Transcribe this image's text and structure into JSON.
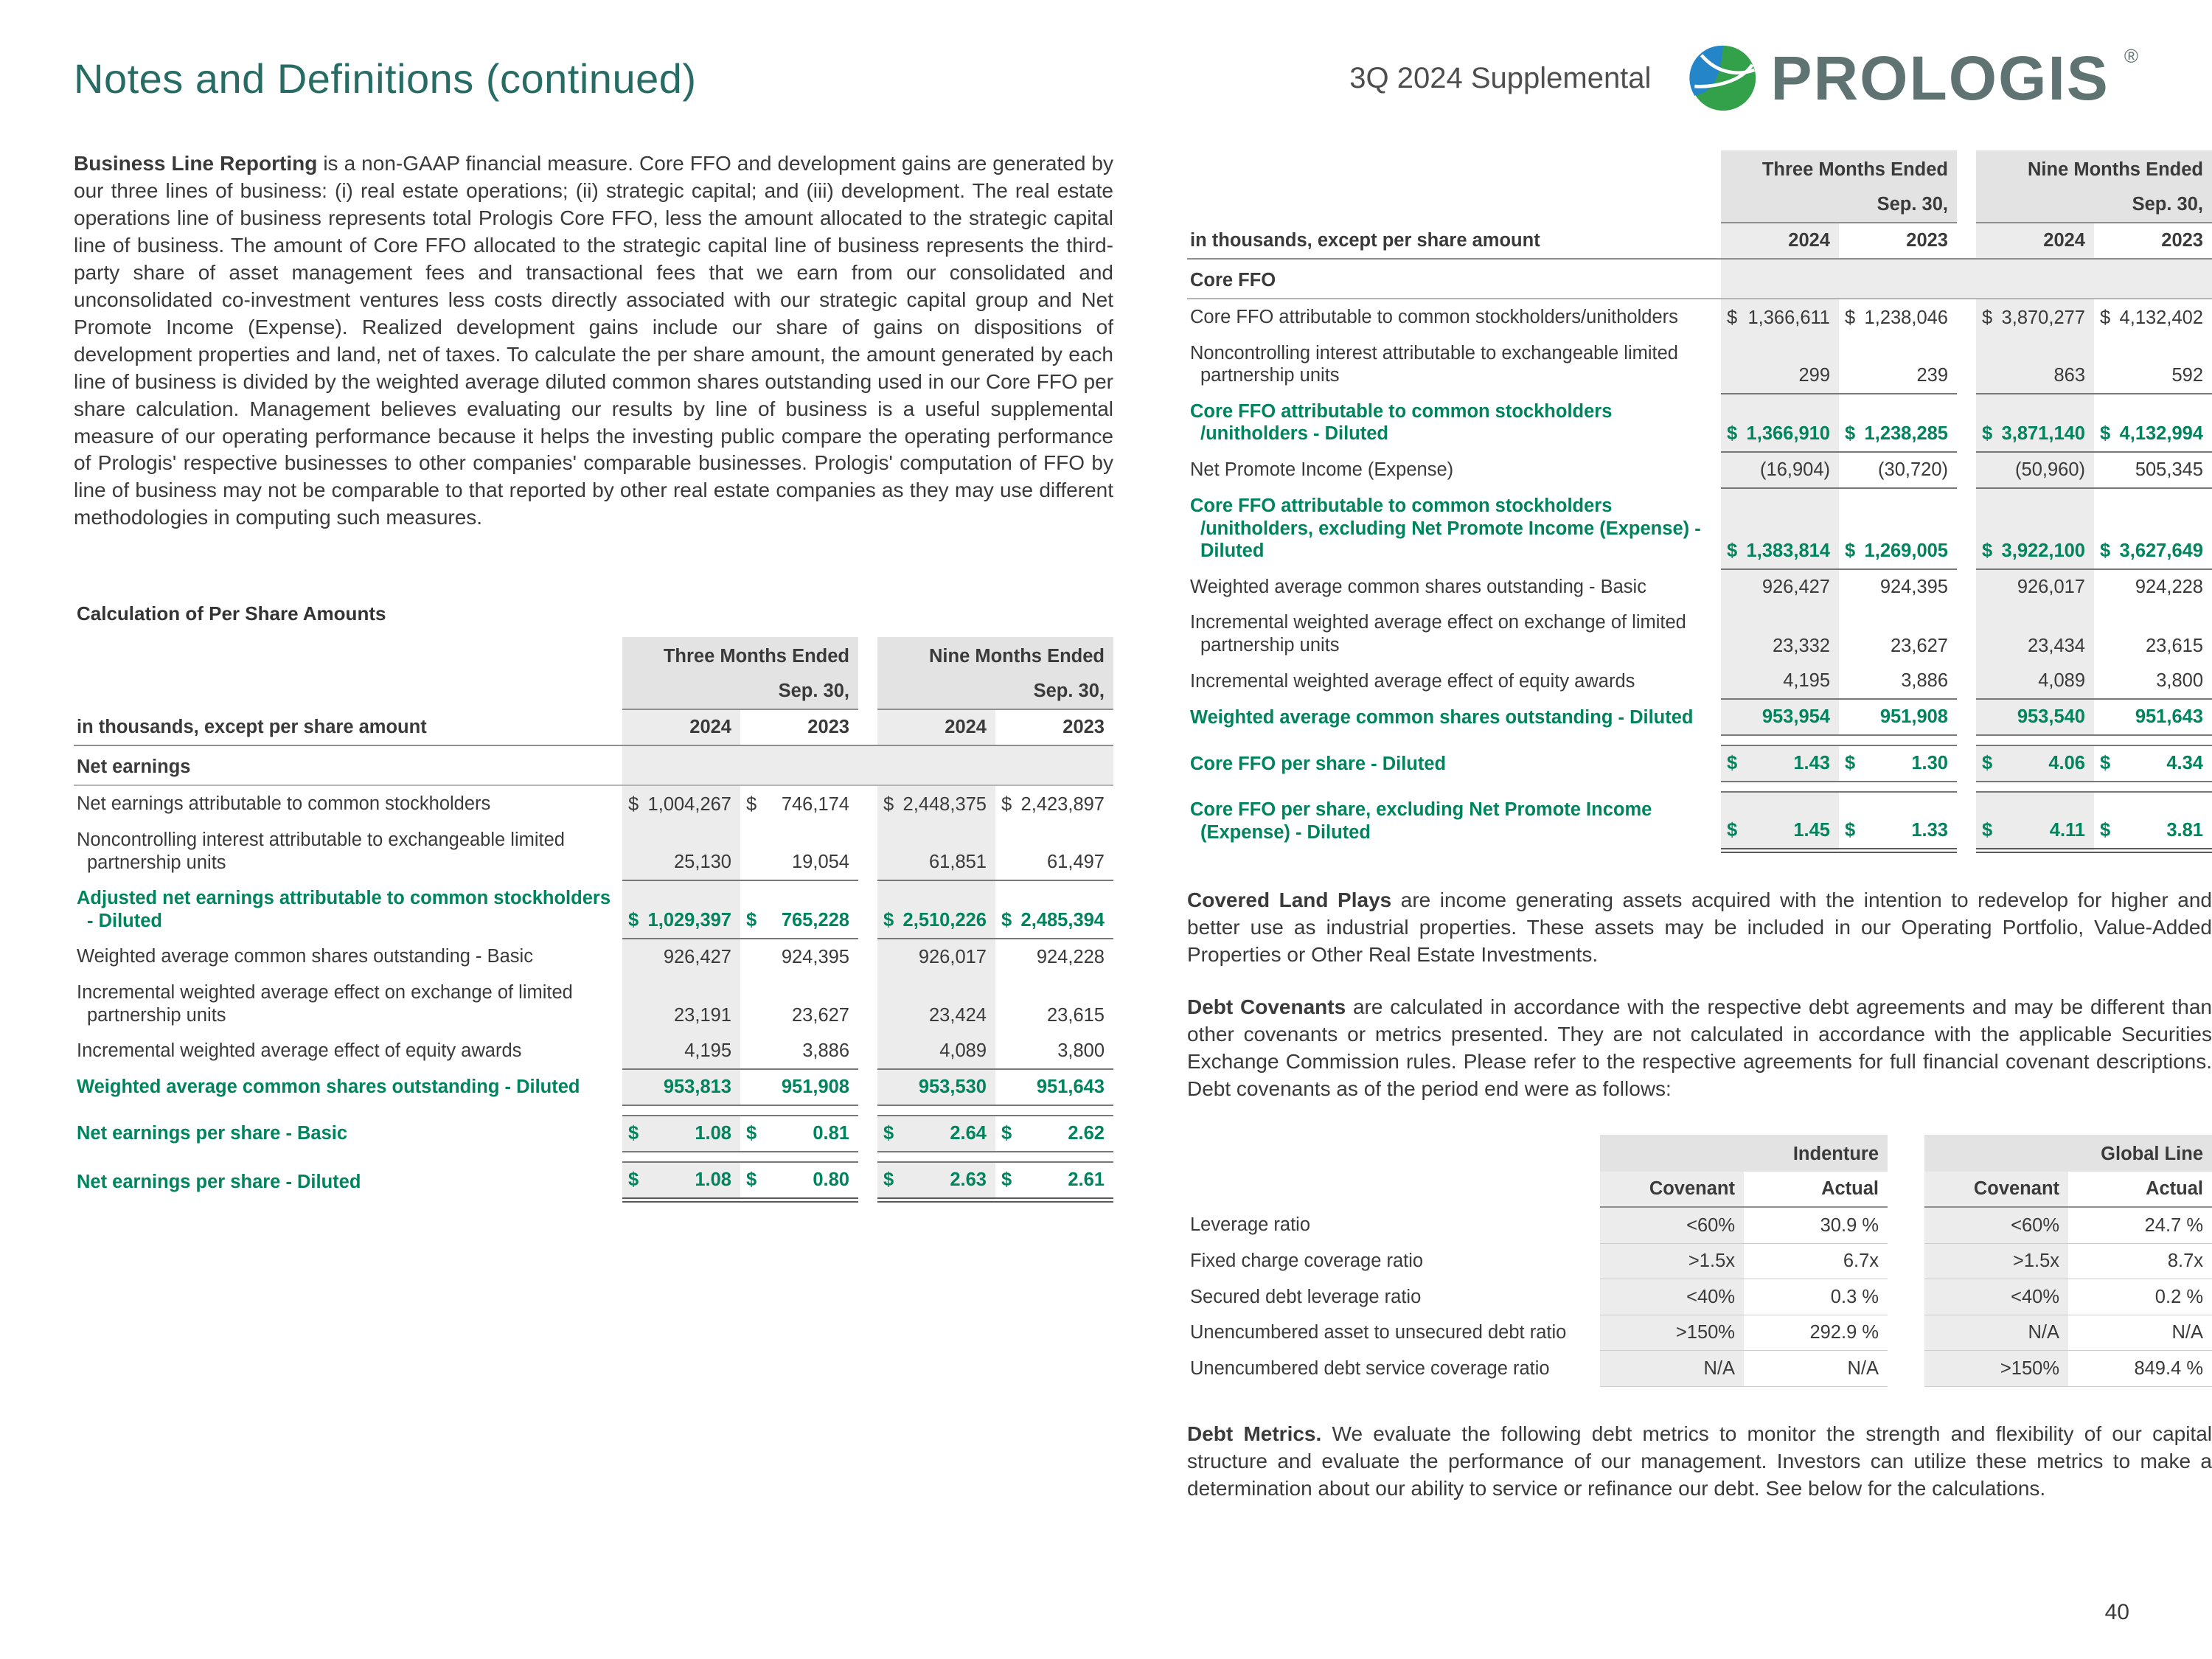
{
  "page": {
    "title": "Notes and Definitions (continued)",
    "supplemental": "3Q 2024 Supplemental",
    "brand": "PROLOGIS",
    "reg": "®",
    "page_number": "40",
    "colors": {
      "accent_green": "#00845E",
      "title_teal": "#266B64",
      "band_gray": "#E3E3E3",
      "column_shade": "#ECECEC"
    }
  },
  "left": {
    "business_line": {
      "lead": "Business Line Reporting",
      "text": " is a non-GAAP financial measure. Core FFO and development gains are generated by our three lines of business: (i) real estate operations; (ii) strategic capital; and (iii) development. The real estate operations line of business represents total Prologis Core FFO, less the amount allocated to the strategic capital line of business. The amount of Core FFO allocated to the strategic capital line of business represents the third-party share of asset management fees and transactional fees that we earn from our consolidated and unconsolidated co-investment ventures less costs directly associated with our strategic capital group and Net Promote Income (Expense). Realized development gains include our share of gains on dispositions of development properties and land, net of taxes. To calculate the per share amount, the amount generated by each line of business is divided by the weighted average diluted common shares outstanding used in our Core FFO per share calculation. Management believes evaluating our results by line of business is a useful supplemental measure of our operating performance because it helps the investing public compare the operating performance of Prologis' respective businesses to other companies' comparable businesses. Prologis' computation of FFO by line of business may not be comparable to that reported by other real estate companies as they may use different methodologies in computing such measures."
    },
    "per_share_table": {
      "caption": "Calculation of Per Share Amounts",
      "col_groups": [
        "Three Months Ended",
        "Nine Months Ended"
      ],
      "date_label": "Sep. 30,",
      "years": [
        "2024",
        "2023",
        "2024",
        "2023"
      ],
      "units_label": "in thousands, except per share amount",
      "section": "Net earnings",
      "rows": [
        {
          "label": "Net earnings attributable to common stockholders",
          "dollar": true,
          "cls": "",
          "values": [
            "1,004,267",
            "746,174",
            "2,448,375",
            "2,423,897"
          ]
        },
        {
          "label": "Noncontrolling interest attributable to exchangeable limited partnership units",
          "dollar": false,
          "cls": "",
          "values": [
            "25,130",
            "19,054",
            "61,851",
            "61,497"
          ]
        },
        {
          "label": "Adjusted net earnings attributable to common stockholders - Diluted",
          "dollar": true,
          "cls": "g bt bb",
          "values": [
            "1,029,397",
            "765,228",
            "2,510,226",
            "2,485,394"
          ]
        },
        {
          "label": "Weighted average common shares outstanding - Basic",
          "dollar": false,
          "cls": "",
          "values": [
            "926,427",
            "924,395",
            "926,017",
            "924,228"
          ]
        },
        {
          "label": "Incremental weighted average effect on exchange of limited partnership units",
          "dollar": false,
          "cls": "",
          "values": [
            "23,191",
            "23,627",
            "23,424",
            "23,615"
          ]
        },
        {
          "label": "Incremental weighted average effect of equity awards",
          "dollar": false,
          "cls": "",
          "values": [
            "4,195",
            "3,886",
            "4,089",
            "3,800"
          ]
        },
        {
          "label": "Weighted average common shares outstanding - Diluted",
          "dollar": false,
          "cls": "g bt bb",
          "values": [
            "953,813",
            "951,908",
            "953,530",
            "951,643"
          ]
        },
        {
          "label": "Net earnings per share - Basic",
          "dollar": true,
          "cls": "g bt bb sp",
          "values": [
            "1.08",
            "0.81",
            "2.64",
            "2.62"
          ]
        },
        {
          "label": "Net earnings per share - Diluted",
          "dollar": true,
          "cls": "g bt dbl sp",
          "values": [
            "1.08",
            "0.80",
            "2.63",
            "2.61"
          ]
        }
      ]
    }
  },
  "right": {
    "core_ffo_table": {
      "col_groups": [
        "Three Months Ended",
        "Nine Months Ended"
      ],
      "date_label": "Sep. 30,",
      "years": [
        "2024",
        "2023",
        "2024",
        "2023"
      ],
      "units_label": "in thousands, except per share amount",
      "section": "Core FFO",
      "rows": [
        {
          "label": "Core FFO attributable to common stockholders/unitholders",
          "dollar": true,
          "cls": "",
          "values": [
            "1,366,611",
            "1,238,046",
            "3,870,277",
            "4,132,402"
          ]
        },
        {
          "label": "Noncontrolling interest attributable to exchangeable limited partnership units",
          "dollar": false,
          "cls": "",
          "values": [
            "299",
            "239",
            "863",
            "592"
          ]
        },
        {
          "label": "Core FFO attributable to common stockholders /unitholders - Diluted",
          "dollar": true,
          "cls": "g bt bb",
          "values": [
            "1,366,910",
            "1,238,285",
            "3,871,140",
            "4,132,994"
          ]
        },
        {
          "label": "Net Promote Income (Expense)",
          "dollar": false,
          "cls": "",
          "values": [
            "(16,904)",
            "(30,720)",
            "(50,960)",
            "505,345"
          ]
        },
        {
          "label": "Core FFO attributable to common stockholders /unitholders, excluding Net Promote Income (Expense) - Diluted",
          "dollar": true,
          "cls": "g bt bb",
          "values": [
            "1,383,814",
            "1,269,005",
            "3,922,100",
            "3,627,649"
          ]
        },
        {
          "label": "Weighted average common shares outstanding - Basic",
          "dollar": false,
          "cls": "",
          "values": [
            "926,427",
            "924,395",
            "926,017",
            "924,228"
          ]
        },
        {
          "label": "Incremental weighted average effect on exchange of limited partnership units",
          "dollar": false,
          "cls": "",
          "values": [
            "23,332",
            "23,627",
            "23,434",
            "23,615"
          ]
        },
        {
          "label": "Incremental weighted average effect of equity awards",
          "dollar": false,
          "cls": "",
          "values": [
            "4,195",
            "3,886",
            "4,089",
            "3,800"
          ]
        },
        {
          "label": "Weighted average common shares outstanding - Diluted",
          "dollar": false,
          "cls": "g bt bb",
          "values": [
            "953,954",
            "951,908",
            "953,540",
            "951,643"
          ]
        },
        {
          "label": "Core FFO per share - Diluted",
          "dollar": true,
          "cls": "g bt bb sp",
          "values": [
            "1.43",
            "1.30",
            "4.06",
            "4.34"
          ]
        },
        {
          "label": "Core FFO per share, excluding Net Promote Income (Expense) - Diluted",
          "dollar": true,
          "cls": "g bt dbl sp",
          "values": [
            "1.45",
            "1.33",
            "4.11",
            "3.81"
          ]
        }
      ]
    },
    "covered_land": {
      "lead": "Covered Land Plays",
      "text": " are income generating assets acquired with the intention to redevelop for higher and better use as industrial properties. These assets may be included in our Operating Portfolio, Value-Added Properties or Other Real Estate Investments."
    },
    "debt_covenants": {
      "lead": "Debt Covenants",
      "text": " are calculated in accordance with the respective debt agreements and may be different than other covenants or metrics presented. They are not calculated in accordance with the applicable Securities Exchange Commission rules. Please refer to the respective agreements for full financial covenant descriptions. Debt covenants as of the period end were as follows:"
    },
    "debt_table": {
      "groups": [
        "Indenture",
        "Global Line"
      ],
      "subheads": [
        "Covenant",
        "Actual",
        "Covenant",
        "Actual"
      ],
      "rows": [
        {
          "label": "Leverage ratio",
          "dollar": false,
          "cls": "",
          "values": [
            "<60%",
            "30.9 %",
            "<60%",
            "24.7 %"
          ]
        },
        {
          "label": "Fixed charge coverage ratio",
          "dollar": false,
          "cls": "",
          "values": [
            ">1.5x",
            "6.7x",
            ">1.5x",
            "8.7x"
          ]
        },
        {
          "label": "Secured debt leverage ratio",
          "dollar": false,
          "cls": "",
          "values": [
            "<40%",
            "0.3 %",
            "<40%",
            "0.2 %"
          ]
        },
        {
          "label": "Unencumbered asset to unsecured debt ratio",
          "dollar": false,
          "cls": "",
          "values": [
            ">150%",
            "292.9 %",
            "N/A",
            "N/A"
          ]
        },
        {
          "label": "Unencumbered debt service coverage ratio",
          "dollar": false,
          "cls": "",
          "values": [
            "N/A",
            "N/A",
            ">150%",
            "849.4 %"
          ]
        }
      ]
    },
    "debt_metrics": {
      "lead": "Debt Metrics.",
      "text": " We evaluate the following debt metrics to monitor the strength and flexibility of our capital structure and evaluate the performance of our management. Investors can utilize these metrics to make a determination about our ability to service or refinance our debt. See below for the calculations."
    }
  }
}
